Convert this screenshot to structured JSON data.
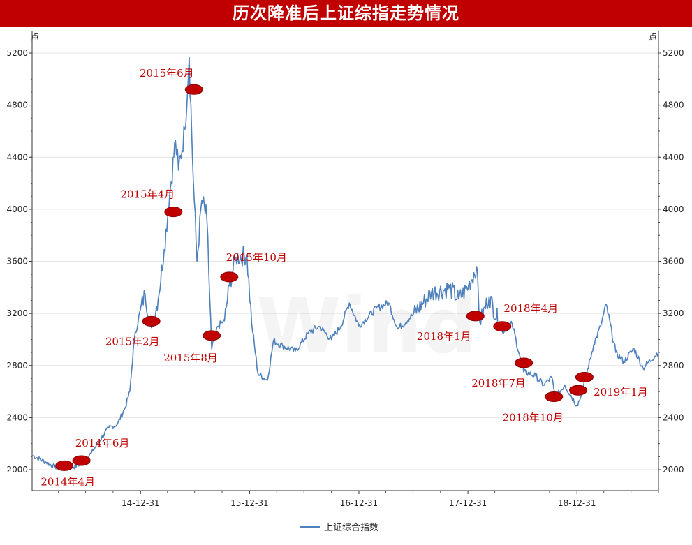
{
  "title": "历次降准后上证综指走势情况",
  "chart_data": {
    "type": "line",
    "title": "历次降准后上证综指走势情况",
    "ylabel_left": "点",
    "ylabel_right": "点",
    "ylim": [
      1950,
      5300
    ],
    "y_ticks": [
      2000,
      2400,
      2800,
      3200,
      3600,
      4000,
      4400,
      4800,
      5200
    ],
    "x_range": [
      "2014-01-02",
      "2019-09-30"
    ],
    "x_ticks": [
      "14-12-31",
      "15-12-31",
      "16-12-31",
      "17-12-31",
      "18-12-31"
    ],
    "grid": true,
    "legend": "bottom-center",
    "watermark": "Wind",
    "series": [
      {
        "name": "上证综合指数",
        "color": "#4f81bd",
        "x": [
          "2014-01-02",
          "2014-02-15",
          "2014-03-20",
          "2014-04-20",
          "2014-05-20",
          "2014-06-20",
          "2014-07-20",
          "2014-08-15",
          "2014-09-15",
          "2014-10-15",
          "2014-11-10",
          "2014-11-25",
          "2014-12-10",
          "2014-12-31",
          "2015-01-15",
          "2015-02-05",
          "2015-02-28",
          "2015-03-20",
          "2015-04-10",
          "2015-04-27",
          "2015-05-07",
          "2015-05-28",
          "2015-06-12",
          "2015-06-26",
          "2015-07-08",
          "2015-07-24",
          "2015-08-10",
          "2015-08-26",
          "2015-09-15",
          "2015-10-08",
          "2015-10-24",
          "2015-11-15",
          "2015-12-22",
          "2016-01-07",
          "2016-01-28",
          "2016-02-29",
          "2016-03-20",
          "2016-04-20",
          "2016-06-01",
          "2016-07-15",
          "2016-08-20",
          "2016-09-30",
          "2016-10-31",
          "2016-11-29",
          "2016-12-31",
          "2017-02-28",
          "2017-04-10",
          "2017-05-10",
          "2017-06-30",
          "2017-08-31",
          "2017-10-31",
          "2017-11-30",
          "2018-01-02",
          "2018-01-29",
          "2018-02-09",
          "2018-03-12",
          "2018-04-25",
          "2018-05-28",
          "2018-06-22",
          "2018-07-06",
          "2018-08-15",
          "2018-09-10",
          "2018-10-08",
          "2018-10-19",
          "2018-11-20",
          "2018-12-31",
          "2019-01-15",
          "2019-02-25",
          "2019-03-20",
          "2019-04-08",
          "2019-05-10",
          "2019-06-06",
          "2019-07-10",
          "2019-08-09",
          "2019-09-30"
        ],
        "values": [
          2110,
          2060,
          2020,
          2030,
          2020,
          2050,
          2130,
          2220,
          2320,
          2350,
          2480,
          2600,
          3000,
          3234,
          3350,
          3090,
          3310,
          3690,
          4170,
          4527,
          4300,
          4610,
          5166,
          4200,
          3600,
          4070,
          3928,
          2927,
          3100,
          3143,
          3412,
          3630,
          3650,
          3125,
          2737,
          2687,
          2990,
          2950,
          2910,
          3050,
          3100,
          3000,
          3100,
          3280,
          3104,
          3240,
          3280,
          3080,
          3190,
          3360,
          3393,
          3310,
          3410,
          3560,
          3130,
          3330,
          3060,
          3120,
          2880,
          2750,
          2720,
          2650,
          2710,
          2550,
          2650,
          2494,
          2570,
          2960,
          3100,
          3270,
          2900,
          2830,
          2930,
          2780,
          2905
        ]
      }
    ],
    "annotations": [
      {
        "label": "2014年4月",
        "x": "2014-04-20",
        "y": 2030
      },
      {
        "label": "2014年6月",
        "x": "2014-06-16",
        "y": 2070
      },
      {
        "label": "2015年2月",
        "x": "2015-02-05",
        "y": 3140
      },
      {
        "label": "2015年4月",
        "x": "2015-04-20",
        "y": 3980
      },
      {
        "label": "2015年6月",
        "x": "2015-06-28",
        "y": 4920
      },
      {
        "label": "2015年8月",
        "x": "2015-08-26",
        "y": 3030
      },
      {
        "label": "2015年10月",
        "x": "2015-10-24",
        "y": 3480
      },
      {
        "label": "2018年1月",
        "x": "2018-01-25",
        "y": 3180
      },
      {
        "label": "2018年4月",
        "x": "2018-04-25",
        "y": 3100
      },
      {
        "label": "2018年7月",
        "x": "2018-07-06",
        "y": 2820
      },
      {
        "label": "2018年10月",
        "x": "2018-10-15",
        "y": 2560
      },
      {
        "label": "2019年1月",
        "x": "2019-01-04",
        "y": 2610
      },
      {
        "label": "2019年1月",
        "x": "2019-01-25",
        "y": 2710
      }
    ],
    "marker_color": "#c00000"
  }
}
